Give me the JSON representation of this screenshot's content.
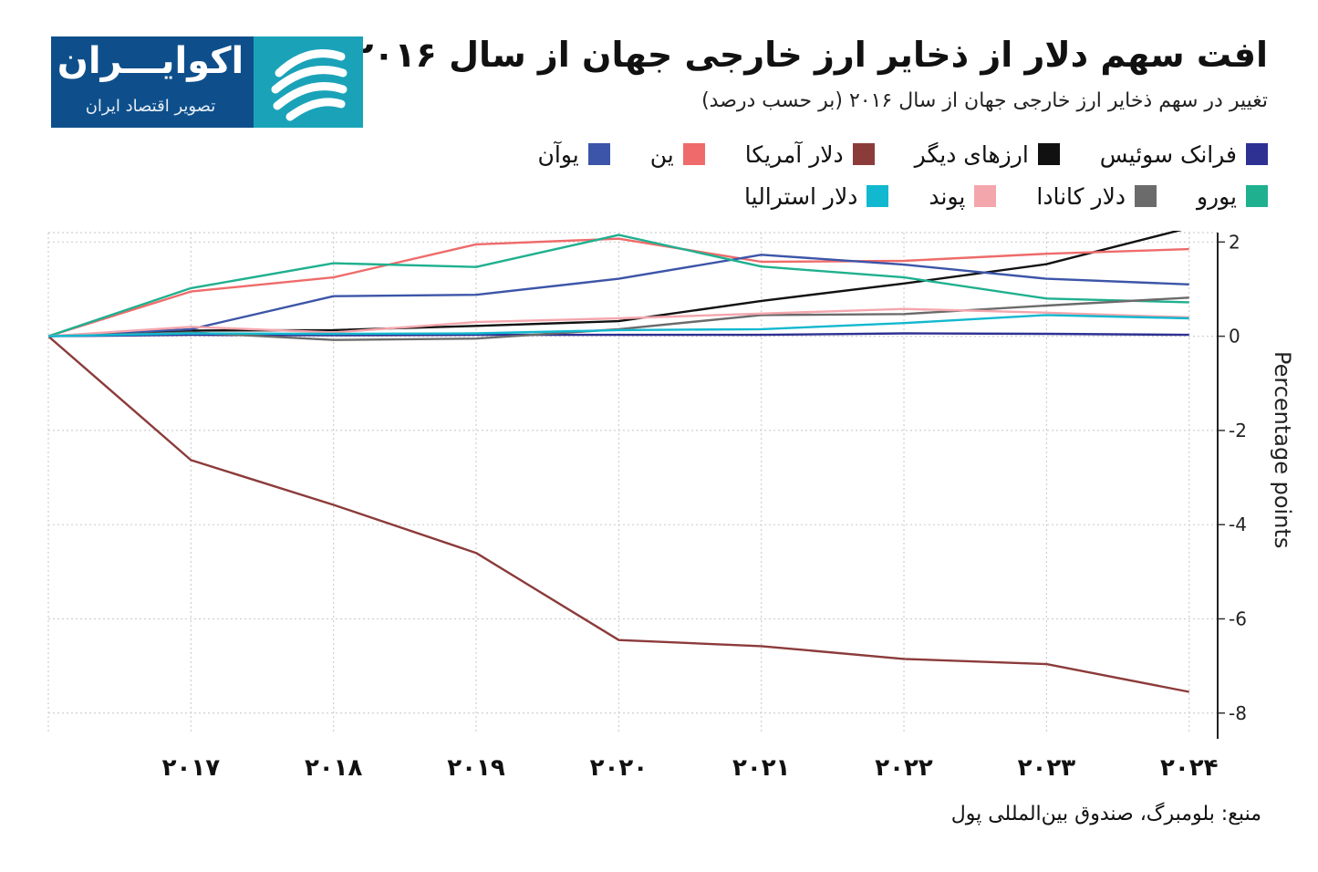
{
  "header": {
    "title": "افت سهم دلار از ذخایر ارز خارجی جهان از سال ۲۰۱۶",
    "subtitle": "تغییر در سهم ذخایر ارز خارجی جهان از سال ۲۰۱۶ (بر حسب درصد)"
  },
  "logo": {
    "name": "اکوایـــران",
    "tagline": "تصویر اقتصاد ایران",
    "colors": {
      "text_bg": "#0e4f8b",
      "mark_bg": "#1aa3b8"
    },
    "icon": "ekoiran-logo-mark"
  },
  "source": "منبع: بلومبرگ، صندوق بین‌المللی پول",
  "chart_data": {
    "type": "line",
    "title": "افت سهم دلار از ذخایر ارز خارجی جهان از سال ۲۰۱۶",
    "subtitle": "تغییر در سهم ذخایر ارز خارجی جهان از سال ۲۰۱۶ (بر حسب درصد)",
    "ylabel": "Percentage points",
    "xlabel": "",
    "x": [
      2016,
      2017,
      2018,
      2019,
      2020,
      2021,
      2022,
      2023,
      2024
    ],
    "x_tick_labels": [
      "۲۰۱۷",
      "۲۰۱۸",
      "۲۰۱۹",
      "۲۰۲۰",
      "۲۰۲۱",
      "۲۰۲۲",
      "۲۰۲۳",
      "۲۰۲۴"
    ],
    "x_tick_values": [
      2017,
      2018,
      2019,
      2020,
      2021,
      2022,
      2023,
      2024
    ],
    "y_tick_labels": [
      "2",
      "0",
      "-2",
      "-4",
      "-6",
      "-8"
    ],
    "y_tick_values": [
      2,
      0,
      -2,
      -4,
      -6,
      -8
    ],
    "xlim": [
      2016,
      2024.2
    ],
    "ylim": [
      -8.45,
      2.2
    ],
    "grid": true,
    "y_axis_side": "right",
    "legend_position": "top",
    "series": [
      {
        "name": "فرانک سوئیس",
        "color": "#2e3192",
        "values": [
          0,
          0.03,
          0.02,
          0.03,
          0.03,
          0.03,
          0.06,
          0.05,
          0.03
        ]
      },
      {
        "name": "ارزهای دیگر",
        "color": "#111111",
        "values": [
          0,
          0.12,
          0.13,
          0.22,
          0.32,
          0.75,
          1.12,
          1.53,
          2.3
        ]
      },
      {
        "name": "دلار آمریکا",
        "color": "#8c3b3b",
        "values": [
          0,
          -2.63,
          -3.58,
          -4.6,
          -6.45,
          -6.58,
          -6.85,
          -6.96,
          -7.55
        ]
      },
      {
        "name": "ین",
        "color": "#ef6b6b",
        "values": [
          0,
          0.95,
          1.25,
          1.95,
          2.07,
          1.58,
          1.6,
          1.75,
          1.85
        ]
      },
      {
        "name": "یوآن",
        "color": "#3c55a8",
        "values": [
          0,
          0.15,
          0.85,
          0.88,
          1.22,
          1.73,
          1.52,
          1.22,
          1.1
        ]
      },
      {
        "name": "یورو",
        "color": "#1fb08f",
        "values": [
          0,
          1.02,
          1.55,
          1.47,
          2.15,
          1.48,
          1.25,
          0.8,
          0.72
        ]
      },
      {
        "name": "دلار کانادا",
        "color": "#6b6b6b",
        "values": [
          0,
          0.08,
          -0.08,
          -0.05,
          0.15,
          0.45,
          0.47,
          0.65,
          0.82
        ]
      },
      {
        "name": "پوند",
        "color": "#f4a6ad",
        "values": [
          0,
          0.2,
          0.08,
          0.3,
          0.38,
          0.48,
          0.58,
          0.5,
          0.4
        ]
      },
      {
        "name": "دلار استرالیا",
        "color": "#12b8cf",
        "values": [
          0,
          0.06,
          0.05,
          0.06,
          0.13,
          0.15,
          0.28,
          0.45,
          0.38
        ]
      }
    ]
  }
}
